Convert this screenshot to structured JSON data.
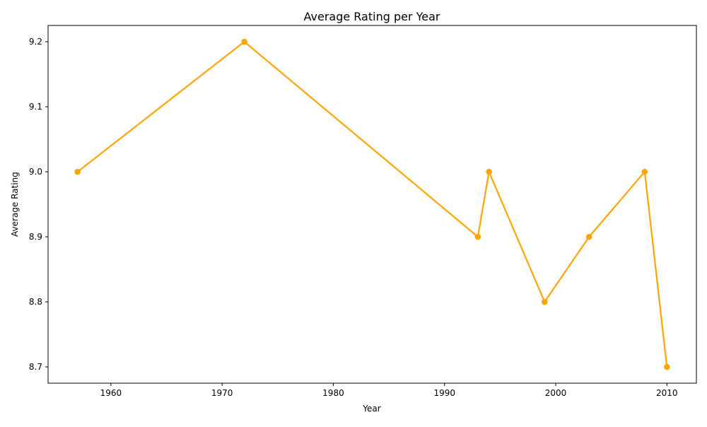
{
  "chart_data": {
    "type": "line",
    "title": "Average Rating per Year",
    "xlabel": "Year",
    "ylabel": "Average Rating",
    "x": [
      1957,
      1972,
      1993,
      1994,
      1999,
      2003,
      2008,
      2010
    ],
    "series": [
      {
        "values": [
          9.0,
          9.2,
          8.9,
          9.0,
          8.8,
          8.9,
          9.0,
          8.7
        ],
        "color": "#ffa500",
        "marker": "circle"
      }
    ],
    "xlim": [
      1954.35,
      2012.65
    ],
    "ylim": [
      8.675,
      9.225
    ],
    "xticks": [
      1960,
      1970,
      1980,
      1990,
      2000,
      2010
    ],
    "yticks": [
      8.7,
      8.8,
      8.9,
      9.0,
      9.1,
      9.2
    ],
    "xtick_labels": [
      "1960",
      "1970",
      "1980",
      "1990",
      "2000",
      "2010"
    ],
    "ytick_labels": [
      "8.7",
      "8.8",
      "8.9",
      "9.0",
      "9.1",
      "9.2"
    ],
    "grid": false,
    "legend": false
  }
}
